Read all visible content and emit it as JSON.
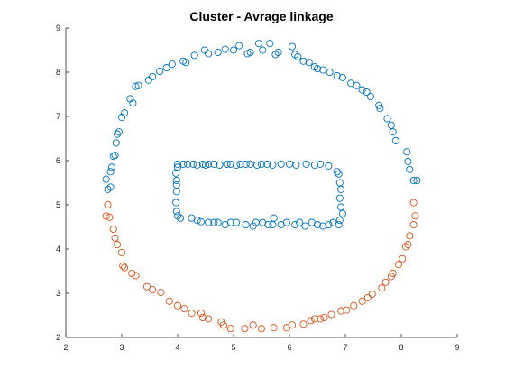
{
  "chart_data": {
    "type": "scatter",
    "title": "Cluster - Avrage linkage",
    "xlabel": "",
    "ylabel": "",
    "xlim": [
      2,
      9
    ],
    "ylim": [
      2,
      9
    ],
    "xticks": [
      2,
      3,
      4,
      5,
      6,
      7,
      8,
      9
    ],
    "yticks": [
      2,
      3,
      4,
      5,
      6,
      7,
      8,
      9
    ],
    "grid": false,
    "legend": "none",
    "series": [
      {
        "color": "#0072BD",
        "marker": "circle-open",
        "points": [
          [
            2.72,
            5.58
          ],
          [
            2.75,
            5.35
          ],
          [
            2.8,
            5.4
          ],
          [
            2.8,
            5.75
          ],
          [
            2.82,
            5.85
          ],
          [
            2.85,
            6.1
          ],
          [
            2.88,
            6.12
          ],
          [
            2.9,
            6.4
          ],
          [
            2.92,
            6.6
          ],
          [
            2.95,
            6.65
          ],
          [
            3.0,
            6.98
          ],
          [
            3.05,
            7.08
          ],
          [
            3.15,
            7.4
          ],
          [
            3.2,
            7.3
          ],
          [
            3.25,
            7.68
          ],
          [
            3.3,
            7.7
          ],
          [
            3.48,
            7.82
          ],
          [
            3.55,
            7.9
          ],
          [
            3.68,
            8.02
          ],
          [
            3.8,
            8.1
          ],
          [
            3.9,
            8.18
          ],
          [
            4.1,
            8.25
          ],
          [
            4.15,
            8.22
          ],
          [
            4.3,
            8.38
          ],
          [
            4.48,
            8.5
          ],
          [
            4.55,
            8.42
          ],
          [
            4.72,
            8.45
          ],
          [
            4.85,
            8.52
          ],
          [
            5.0,
            8.5
          ],
          [
            5.1,
            8.6
          ],
          [
            5.25,
            8.42
          ],
          [
            5.3,
            8.45
          ],
          [
            5.45,
            8.65
          ],
          [
            5.52,
            8.5
          ],
          [
            5.65,
            8.65
          ],
          [
            5.75,
            8.4
          ],
          [
            5.8,
            8.45
          ],
          [
            6.05,
            8.58
          ],
          [
            6.1,
            8.4
          ],
          [
            6.15,
            8.35
          ],
          [
            6.25,
            8.25
          ],
          [
            6.35,
            8.22
          ],
          [
            6.45,
            8.12
          ],
          [
            6.5,
            8.08
          ],
          [
            6.6,
            8.05
          ],
          [
            6.72,
            8.0
          ],
          [
            6.85,
            7.92
          ],
          [
            6.95,
            7.88
          ],
          [
            7.1,
            7.75
          ],
          [
            7.2,
            7.7
          ],
          [
            7.3,
            7.6
          ],
          [
            7.38,
            7.55
          ],
          [
            7.45,
            7.45
          ],
          [
            7.6,
            7.25
          ],
          [
            7.62,
            7.18
          ],
          [
            7.75,
            6.95
          ],
          [
            7.82,
            6.8
          ],
          [
            7.85,
            6.65
          ],
          [
            7.9,
            6.45
          ],
          [
            8.1,
            6.2
          ],
          [
            8.12,
            5.98
          ],
          [
            8.15,
            5.8
          ],
          [
            8.22,
            5.55
          ],
          [
            8.28,
            5.55
          ],
          [
            4.0,
            5.92
          ],
          [
            4.1,
            5.92
          ],
          [
            4.18,
            5.92
          ],
          [
            4.28,
            5.92
          ],
          [
            4.35,
            5.9
          ],
          [
            4.45,
            5.92
          ],
          [
            4.5,
            5.9
          ],
          [
            4.55,
            5.92
          ],
          [
            4.65,
            5.92
          ],
          [
            4.75,
            5.9
          ],
          [
            4.88,
            5.92
          ],
          [
            4.95,
            5.92
          ],
          [
            5.05,
            5.9
          ],
          [
            5.12,
            5.92
          ],
          [
            5.22,
            5.92
          ],
          [
            5.3,
            5.92
          ],
          [
            5.42,
            5.9
          ],
          [
            5.5,
            5.92
          ],
          [
            5.6,
            5.92
          ],
          [
            5.7,
            5.9
          ],
          [
            5.85,
            5.92
          ],
          [
            6.0,
            5.92
          ],
          [
            6.12,
            5.9
          ],
          [
            6.3,
            5.92
          ],
          [
            6.45,
            5.9
          ],
          [
            6.55,
            5.92
          ],
          [
            6.7,
            5.88
          ],
          [
            6.85,
            5.75
          ],
          [
            6.88,
            5.7
          ],
          [
            6.9,
            5.5
          ],
          [
            6.92,
            5.35
          ],
          [
            6.9,
            5.15
          ],
          [
            6.92,
            4.95
          ],
          [
            6.95,
            4.8
          ],
          [
            6.9,
            4.65
          ],
          [
            6.88,
            4.55
          ],
          [
            6.78,
            4.6
          ],
          [
            6.7,
            4.55
          ],
          [
            6.6,
            4.52
          ],
          [
            6.5,
            4.55
          ],
          [
            6.4,
            4.6
          ],
          [
            6.28,
            4.52
          ],
          [
            6.18,
            4.6
          ],
          [
            6.1,
            4.55
          ],
          [
            5.95,
            4.6
          ],
          [
            5.85,
            4.55
          ],
          [
            5.72,
            4.7
          ],
          [
            5.7,
            4.55
          ],
          [
            5.62,
            4.55
          ],
          [
            5.52,
            4.6
          ],
          [
            5.4,
            4.6
          ],
          [
            5.35,
            4.52
          ],
          [
            5.22,
            4.55
          ],
          [
            5.05,
            4.6
          ],
          [
            4.95,
            4.6
          ],
          [
            4.85,
            4.55
          ],
          [
            4.72,
            4.6
          ],
          [
            4.65,
            4.6
          ],
          [
            4.55,
            4.6
          ],
          [
            4.42,
            4.62
          ],
          [
            4.35,
            4.65
          ],
          [
            4.25,
            4.7
          ],
          [
            4.05,
            4.7
          ],
          [
            4.0,
            4.75
          ],
          [
            3.98,
            4.85
          ],
          [
            3.97,
            5.05
          ],
          [
            3.98,
            5.3
          ],
          [
            3.98,
            5.45
          ],
          [
            3.98,
            5.55
          ],
          [
            3.97,
            5.72
          ],
          [
            4.0,
            5.85
          ]
        ]
      },
      {
        "color": "#D95319",
        "marker": "circle-open",
        "points": [
          [
            2.75,
            5.0
          ],
          [
            2.72,
            4.75
          ],
          [
            2.78,
            4.72
          ],
          [
            2.85,
            4.45
          ],
          [
            2.88,
            4.25
          ],
          [
            2.92,
            4.1
          ],
          [
            3.0,
            3.92
          ],
          [
            3.02,
            3.62
          ],
          [
            3.05,
            3.58
          ],
          [
            3.18,
            3.45
          ],
          [
            3.25,
            3.4
          ],
          [
            3.45,
            3.15
          ],
          [
            3.55,
            3.08
          ],
          [
            3.7,
            3.02
          ],
          [
            3.85,
            2.82
          ],
          [
            4.0,
            2.72
          ],
          [
            4.12,
            2.65
          ],
          [
            4.25,
            2.55
          ],
          [
            4.42,
            2.55
          ],
          [
            4.45,
            2.45
          ],
          [
            4.55,
            2.42
          ],
          [
            4.78,
            2.35
          ],
          [
            4.82,
            2.28
          ],
          [
            4.95,
            2.2
          ],
          [
            5.2,
            2.2
          ],
          [
            5.35,
            2.28
          ],
          [
            5.5,
            2.2
          ],
          [
            5.72,
            2.22
          ],
          [
            5.95,
            2.22
          ],
          [
            6.05,
            2.28
          ],
          [
            6.25,
            2.3
          ],
          [
            6.38,
            2.38
          ],
          [
            6.45,
            2.42
          ],
          [
            6.55,
            2.42
          ],
          [
            6.62,
            2.45
          ],
          [
            6.75,
            2.52
          ],
          [
            6.92,
            2.6
          ],
          [
            7.02,
            2.62
          ],
          [
            7.15,
            2.72
          ],
          [
            7.3,
            2.82
          ],
          [
            7.4,
            2.9
          ],
          [
            7.48,
            2.98
          ],
          [
            7.65,
            3.12
          ],
          [
            7.72,
            3.25
          ],
          [
            7.82,
            3.38
          ],
          [
            7.85,
            3.45
          ],
          [
            7.95,
            3.65
          ],
          [
            8.02,
            3.78
          ],
          [
            8.08,
            4.05
          ],
          [
            8.12,
            4.1
          ],
          [
            8.15,
            4.3
          ],
          [
            8.22,
            4.55
          ],
          [
            8.25,
            4.75
          ],
          [
            8.22,
            5.05
          ]
        ]
      }
    ]
  }
}
